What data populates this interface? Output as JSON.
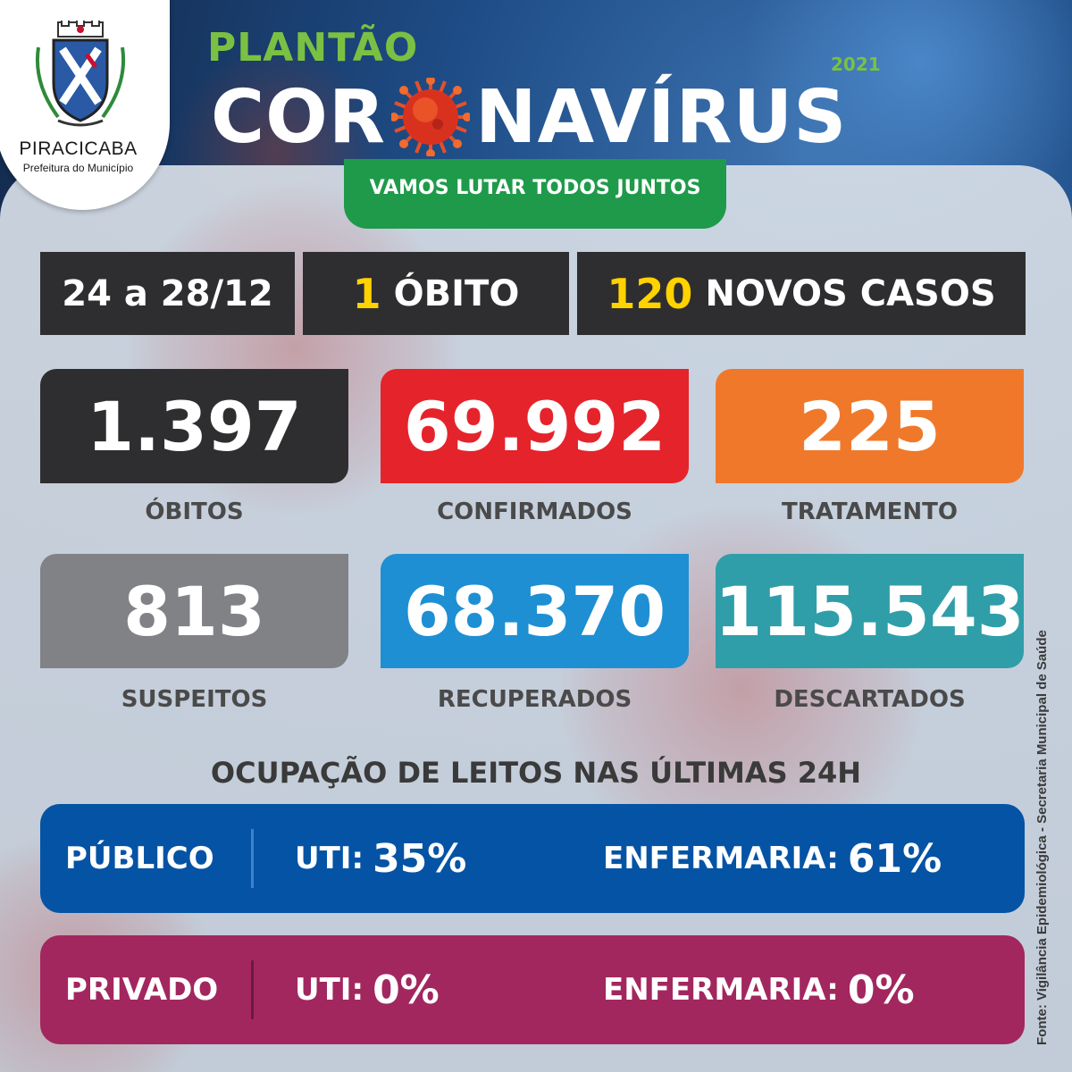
{
  "header": {
    "city": "PIRACICABA",
    "prefeitura": "Prefeitura do Município",
    "plantao": "PLANTÃO",
    "title_left": "COR",
    "title_right": "NAVÍRUS",
    "year": "2021",
    "slogan": "VAMOS LUTAR TODOS JUNTOS"
  },
  "summary": {
    "period": "24 a 28/12",
    "deaths_count": "1",
    "deaths_label": "ÓBITO",
    "new_cases_count": "120",
    "new_cases_label": "NOVOS CASOS"
  },
  "stats": [
    {
      "value": "1.397",
      "label": "ÓBITOS",
      "color": "#2e2e30"
    },
    {
      "value": "69.992",
      "label": "CONFIRMADOS",
      "color": "#e5232b"
    },
    {
      "value": "225",
      "label": "TRATAMENTO",
      "color": "#f0782a"
    },
    {
      "value": "813",
      "label": "SUSPEITOS",
      "color": "#818285"
    },
    {
      "value": "68.370",
      "label": "RECUPERADOS",
      "color": "#1e8fd3"
    },
    {
      "value": "115.543",
      "label": "DESCARTADOS",
      "color": "#2f9ea9"
    }
  ],
  "occupancy": {
    "title": "OCUPAÇÃO DE LEITOS NAS ÚLTIMAS 24H",
    "rows": [
      {
        "label": "PÚBLICO",
        "uti_label": "UTI:",
        "uti_value": "35%",
        "enf_label": "ENFERMARIA:",
        "enf_value": "61%",
        "color": "#0553a5",
        "divider": "#3f7fd0"
      },
      {
        "label": "PRIVADO",
        "uti_label": "UTI:",
        "uti_value": "0%",
        "enf_label": "ENFERMARIA:",
        "enf_value": "0%",
        "color": "#a2275f",
        "divider": "#6b1a3f"
      }
    ]
  },
  "source": "Fonte: Vigilância Epidemiológica - Secretaria Municipal de Saúde"
}
